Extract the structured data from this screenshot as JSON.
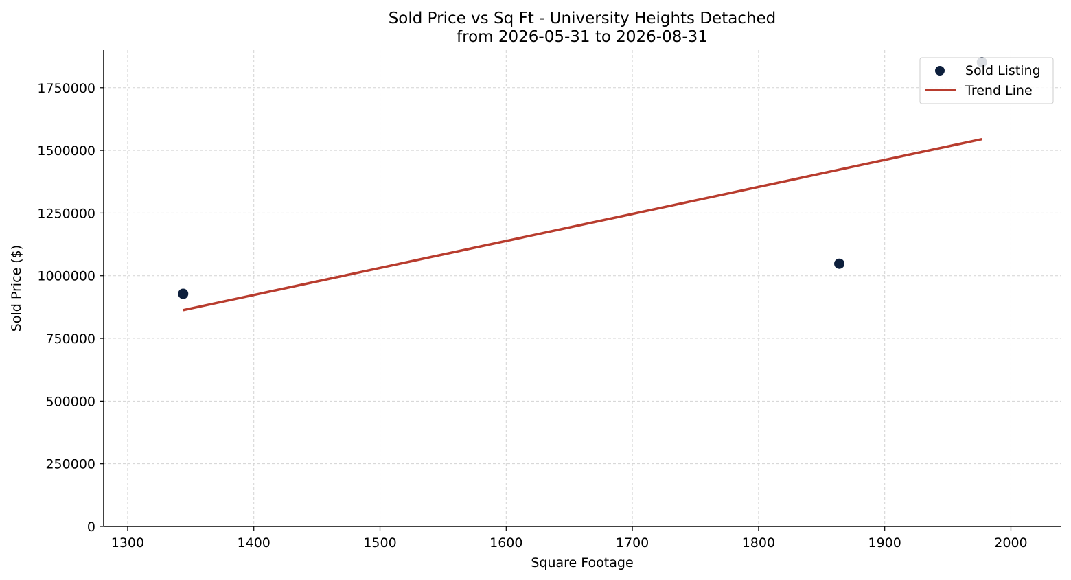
{
  "chart_data": {
    "type": "scatter",
    "title_line1": "Sold Price vs Sq Ft - University Heights Detached",
    "title_line2": "from 2026-05-31 to 2026-08-31",
    "xlabel": "Square Footage",
    "ylabel": "Sold Price ($)",
    "xlim": [
      1281,
      2040
    ],
    "ylim": [
      0,
      1900000
    ],
    "xticks": [
      1300,
      1400,
      1500,
      1600,
      1700,
      1800,
      1900,
      2000
    ],
    "yticks": [
      0,
      250000,
      500000,
      750000,
      1000000,
      1250000,
      1500000,
      1750000
    ],
    "grid": true,
    "legend_position": "top-right",
    "series": [
      {
        "name": "Sold Listing",
        "kind": "scatter",
        "color": "#0d1f3c",
        "points": [
          {
            "x": 1344,
            "y": 928000
          },
          {
            "x": 1864,
            "y": 1048000
          },
          {
            "x": 1977,
            "y": 1852000
          }
        ]
      },
      {
        "name": "Trend Line",
        "kind": "line",
        "color": "#b83c2e",
        "points": [
          {
            "x": 1344,
            "y": 863000
          },
          {
            "x": 1977,
            "y": 1545000
          }
        ]
      }
    ]
  }
}
